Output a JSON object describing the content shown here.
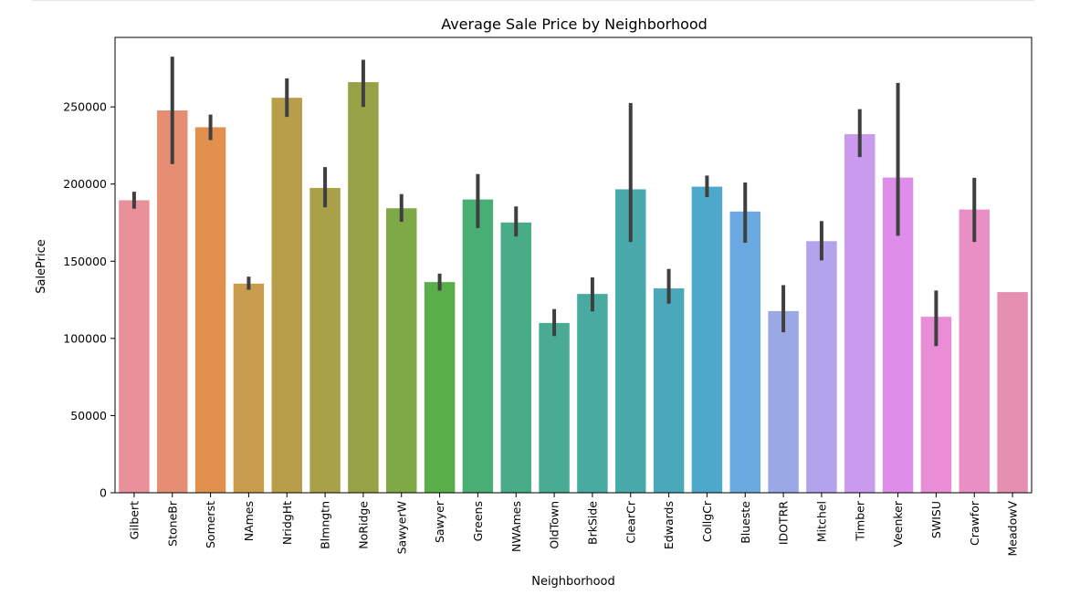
{
  "chart_data": {
    "type": "bar",
    "title": "Average Sale Price by Neighborhood",
    "xlabel": "Neighborhood",
    "ylabel": "SalePrice",
    "ylim": [
      0,
      295000
    ],
    "yticks": [
      0,
      50000,
      100000,
      150000,
      200000,
      250000
    ],
    "ytick_labels": [
      "0",
      "50000",
      "100000",
      "150000",
      "200000",
      "250000"
    ],
    "grid": false,
    "categories": [
      "Gilbert",
      "StoneBr",
      "Somerst",
      "NAmes",
      "NridgHt",
      "Blmngtn",
      "NoRidge",
      "SawyerW",
      "Sawyer",
      "Greens",
      "NWAmes",
      "OldTown",
      "BrkSide",
      "ClearCr",
      "Edwards",
      "CollgCr",
      "Blueste",
      "IDOTRR",
      "Mitchel",
      "Timber",
      "Veenker",
      "SWISU",
      "Crawfor",
      "MeadowV"
    ],
    "values": [
      189500,
      247700,
      236800,
      135500,
      255900,
      197500,
      266000,
      184300,
      136500,
      190000,
      175100,
      110000,
      128800,
      196600,
      132400,
      198300,
      182200,
      117700,
      163000,
      232300,
      204200,
      114000,
      183500,
      130000
    ],
    "ci_low": [
      184000,
      213000,
      228500,
      131500,
      243500,
      185000,
      250000,
      175500,
      131000,
      171500,
      166000,
      101500,
      117500,
      162500,
      122500,
      191500,
      162000,
      104000,
      150500,
      217500,
      166500,
      95000,
      162500,
      130000
    ],
    "ci_high": [
      195000,
      282500,
      245000,
      140000,
      268500,
      211000,
      280500,
      193500,
      142000,
      206500,
      185500,
      119000,
      139500,
      252500,
      145000,
      205500,
      201000,
      134500,
      176000,
      248500,
      265500,
      131000,
      204000,
      130000
    ],
    "colors": [
      "#e8919b",
      "#e68e74",
      "#e2904e",
      "#c99d4d",
      "#b99e4a",
      "#a8a14a",
      "#97a247",
      "#7fa846",
      "#5aae4a",
      "#49ae74",
      "#48ad86",
      "#49ab93",
      "#48aaa0",
      "#4aa9ab",
      "#4ba8ba",
      "#4ea8cc",
      "#6aa9e2",
      "#9aa8e6",
      "#b3a2ec",
      "#c99aee",
      "#de8ee9",
      "#e98dd7",
      "#e98fc6",
      "#e58fb1"
    ]
  }
}
